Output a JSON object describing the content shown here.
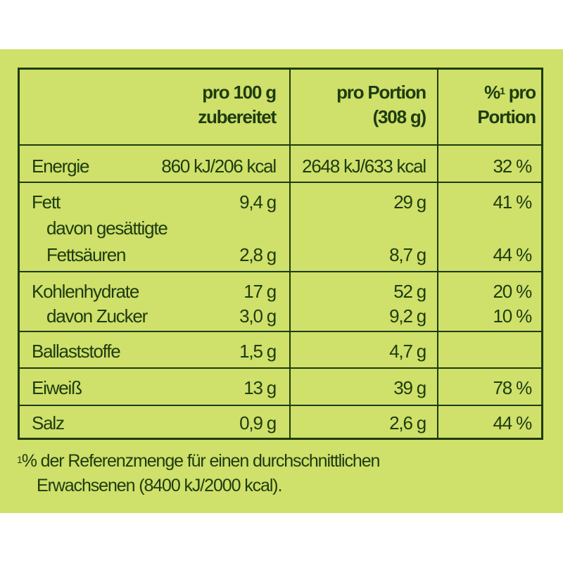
{
  "header": {
    "col1_line1": "pro 100 g",
    "col1_line2": "zubereitet",
    "col2_line1": "pro Portion",
    "col2_line2": "(308 g)",
    "col3_pct": "%",
    "col3_sup": "1",
    "col3_line1": " pro",
    "col3_line2": "Portion"
  },
  "rows": [
    {
      "label": "Energie",
      "per100": "860 kJ/206 kcal",
      "portion": "2648 kJ/633 kcal",
      "pct": "32 %"
    },
    {
      "label": "Fett",
      "per100": "9,4 g",
      "portion": "29 g",
      "pct": "41 %"
    },
    {
      "label": "davon gesättigte",
      "label2": "Fettsäuren",
      "per100": "2,8 g",
      "portion": "8,7 g",
      "pct": "44 %"
    },
    {
      "label": "Kohlenhydrate",
      "per100": "17 g",
      "portion": "52 g",
      "pct": "20 %"
    },
    {
      "label": "davon Zucker",
      "per100": "3,0 g",
      "portion": "9,2 g",
      "pct": "10 %"
    },
    {
      "label": "Ballaststoffe",
      "per100": "1,5 g",
      "portion": "4,7 g",
      "pct": ""
    },
    {
      "label": "Eiweiß",
      "per100": "13 g",
      "portion": "39 g",
      "pct": "78 %"
    },
    {
      "label": "Salz",
      "per100": "0,9 g",
      "portion": "2,6 g",
      "pct": "44 %"
    }
  ],
  "footnote": {
    "sup": "1",
    "line1": "% der Referenzmenge für einen durchschnittlichen",
    "line2": "Erwachsenen (8400 kJ/2000 kcal)."
  }
}
